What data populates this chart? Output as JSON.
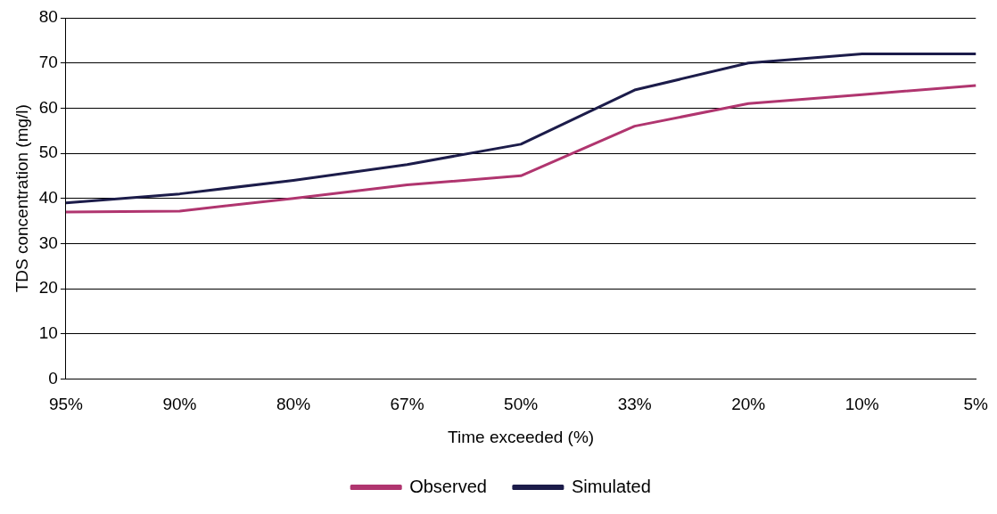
{
  "chart_data": {
    "type": "line",
    "xlabel": "Time exceeded (%)",
    "ylabel": "TDS concentration (mg/l)",
    "categories": [
      "95%",
      "90%",
      "80%",
      "67%",
      "50%",
      "33%",
      "20%",
      "10%",
      "5%"
    ],
    "series": [
      {
        "name": "Observed",
        "color": "#b0356f",
        "values": [
          37,
          37.2,
          40,
          43,
          45,
          56,
          61,
          63,
          65
        ]
      },
      {
        "name": "Simulated",
        "color": "#1c1c4a",
        "values": [
          39,
          41,
          44,
          47.5,
          52,
          64,
          70,
          72,
          72
        ]
      }
    ],
    "ylim": [
      0,
      80
    ],
    "yticks": [
      0,
      10,
      20,
      30,
      40,
      50,
      60,
      70,
      80
    ],
    "grid": "y",
    "legend": "bottom",
    "marker": "none",
    "line_style": "solid"
  }
}
